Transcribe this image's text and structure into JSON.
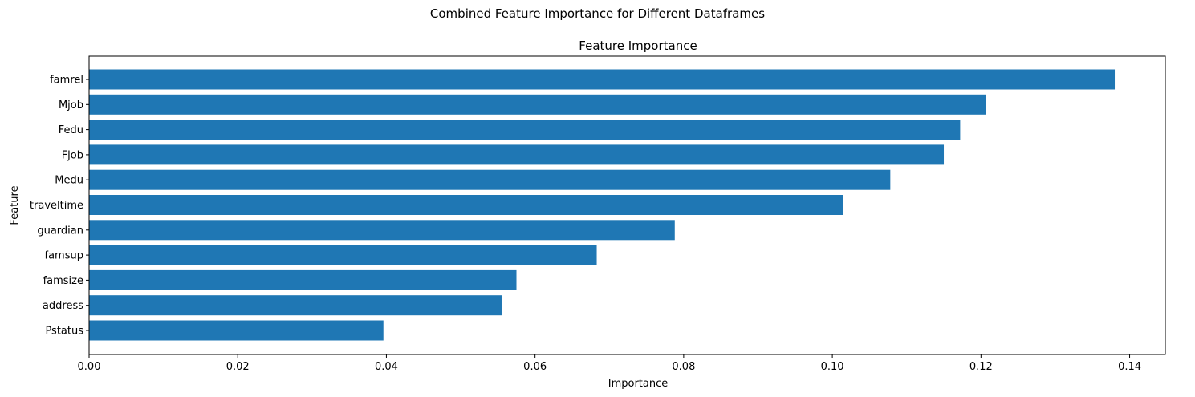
{
  "suptitle": "Combined Feature Importance for Different Dataframes",
  "chart_data": {
    "type": "bar",
    "orientation": "horizontal",
    "title": "Feature Importance",
    "xlabel": "Importance",
    "ylabel": "Feature",
    "categories": [
      "famrel",
      "Mjob",
      "Fedu",
      "Fjob",
      "Medu",
      "traveltime",
      "guardian",
      "famsup",
      "famsize",
      "address",
      "Pstatus"
    ],
    "values": [
      0.138,
      0.1207,
      0.1172,
      0.115,
      0.1078,
      0.1015,
      0.0788,
      0.0683,
      0.0575,
      0.0555,
      0.0396
    ],
    "xlim": [
      0,
      0.1448
    ],
    "xticks": [
      0.0,
      0.02,
      0.04,
      0.06,
      0.08,
      0.1,
      0.12,
      0.14
    ],
    "xtick_labels": [
      "0.00",
      "0.02",
      "0.04",
      "0.06",
      "0.08",
      "0.10",
      "0.12",
      "0.14"
    ],
    "grid": false,
    "bar_color": "#1f77b4"
  }
}
